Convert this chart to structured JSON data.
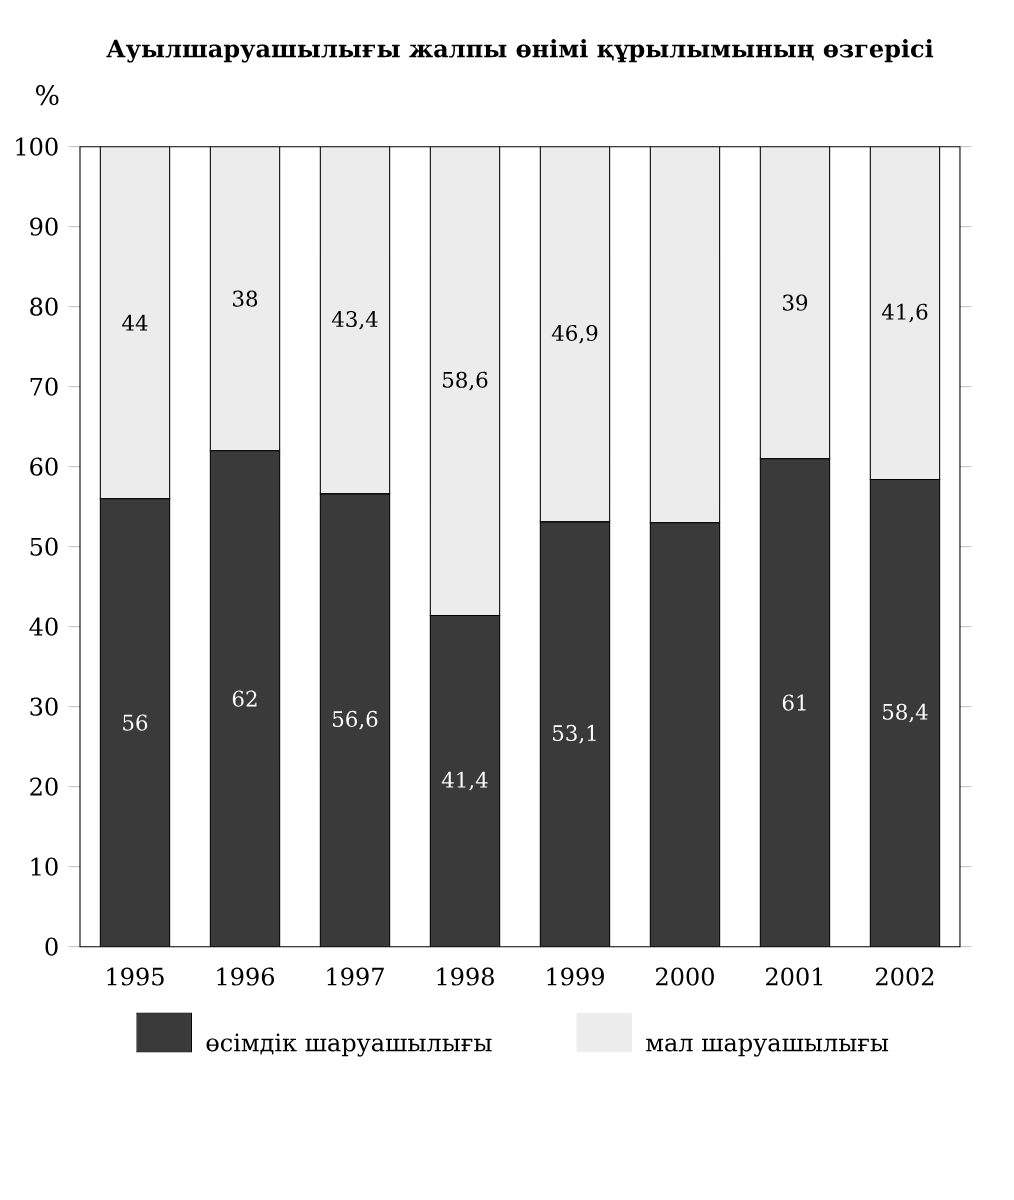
{
  "chart_data": {
    "type": "bar",
    "stacked": true,
    "title": "Ауылшаруашылығы жалпы өнімі құрылымының өзгерісі",
    "ylabel": "%",
    "categories": [
      "1995",
      "1996",
      "1997",
      "1998",
      "1999",
      "2000",
      "2001",
      "2002"
    ],
    "series": [
      {
        "name": "өсімдік шаруашылығы",
        "color": "#3a3a3a",
        "values": [
          56,
          62,
          56.6,
          41.4,
          53.1,
          53,
          61,
          58.4
        ],
        "value_labels": [
          "56",
          "62",
          "56,6",
          "41,4",
          "53,1",
          null,
          "61",
          "58,4"
        ]
      },
      {
        "name": "мал шаруашылығы",
        "color": "#ececec",
        "values": [
          44,
          38,
          43.4,
          58.6,
          46.9,
          47,
          39,
          41.6
        ],
        "value_labels": [
          "44",
          "38",
          "43,4",
          "58,6",
          "46,9",
          null,
          "39",
          "41,6"
        ]
      }
    ],
    "ylim": [
      0,
      100
    ],
    "yticks": [
      0,
      10,
      20,
      30,
      40,
      50,
      60,
      70,
      80,
      90,
      100
    ],
    "legend": "bottom"
  }
}
